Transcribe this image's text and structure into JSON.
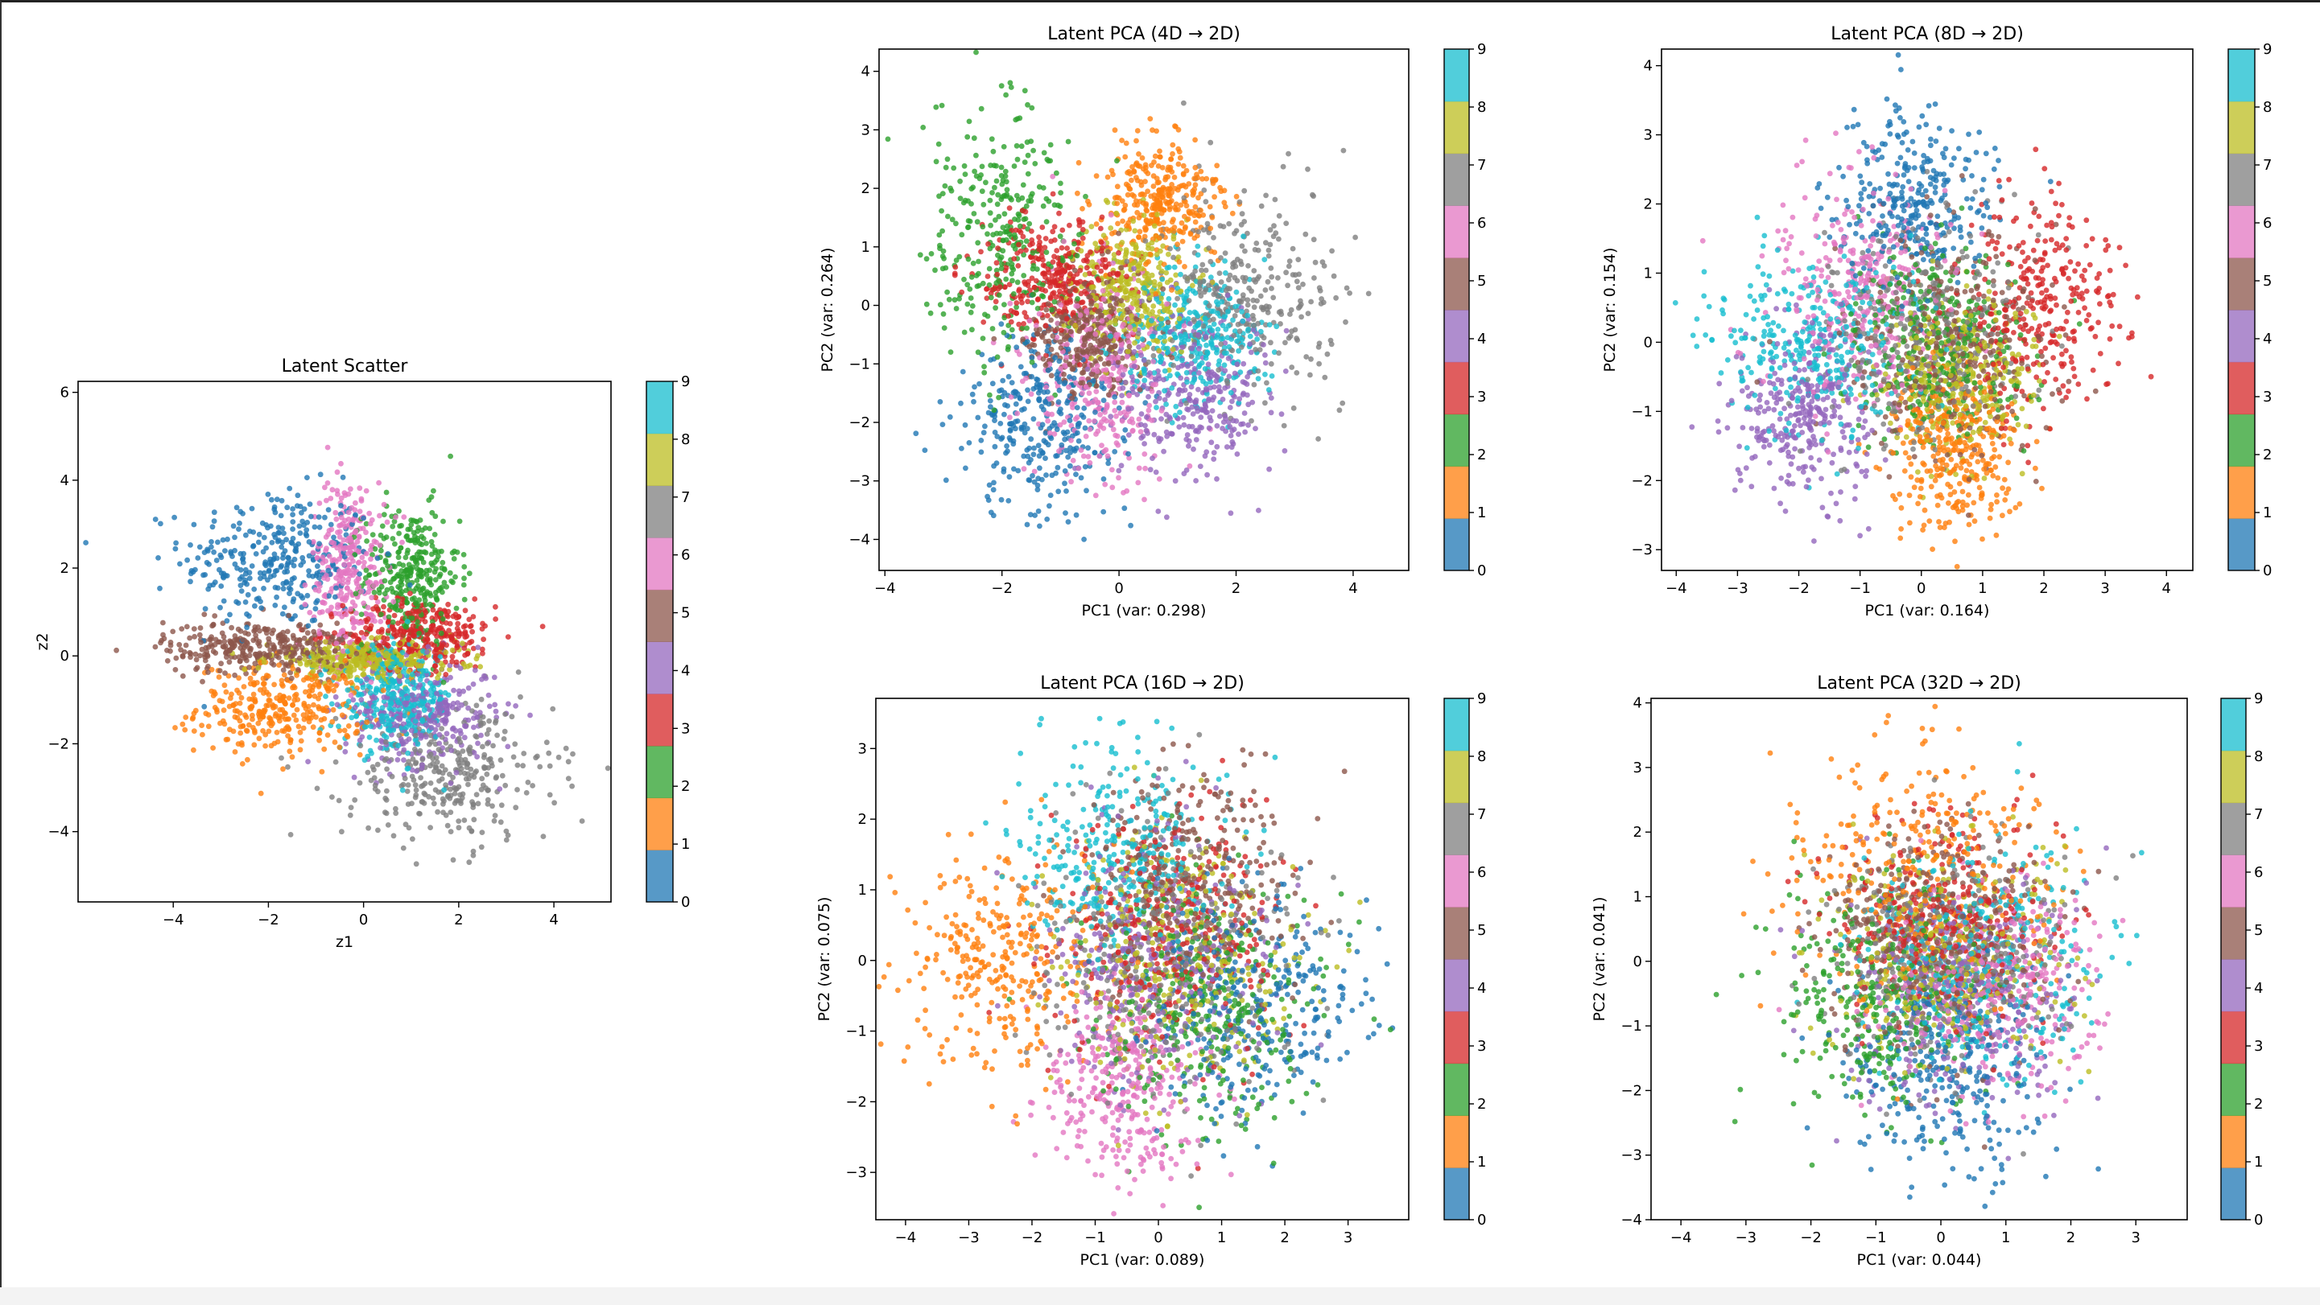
{
  "colors": [
    "#1f77b4",
    "#ff7f0e",
    "#2ca02c",
    "#d62728",
    "#9467bd",
    "#8c564b",
    "#e377c2",
    "#7f7f7f",
    "#bcbd22",
    "#17becf"
  ],
  "colorbar_ticks": [
    "0",
    "1",
    "2",
    "3",
    "4",
    "5",
    "6",
    "7",
    "8",
    "9"
  ],
  "chart_data": [
    {
      "type": "scatter",
      "title": "Latent Scatter",
      "xlabel": "z1",
      "ylabel": "z2",
      "xlim": [
        -6.0,
        5.2
      ],
      "ylim": [
        -5.6,
        6.25
      ],
      "xticks": [
        -4,
        -2,
        0,
        2,
        4
      ],
      "yticks": [
        -4,
        -2,
        0,
        2,
        4,
        6
      ],
      "colorbar": {
        "range": [
          0,
          9
        ],
        "label_field": "class"
      },
      "class_clusters": [
        {
          "class": 0,
          "center": [
            -1.8,
            2.2
          ],
          "spread": [
            1.0,
            0.8
          ]
        },
        {
          "class": 1,
          "center": [
            -1.7,
            -1.2
          ],
          "spread": [
            0.9,
            0.5
          ]
        },
        {
          "class": 2,
          "center": [
            1.0,
            1.8
          ],
          "spread": [
            0.5,
            0.8
          ]
        },
        {
          "class": 3,
          "center": [
            1.2,
            0.5
          ],
          "spread": [
            0.8,
            0.4
          ]
        },
        {
          "class": 4,
          "center": [
            1.2,
            -1.3
          ],
          "spread": [
            0.8,
            0.6
          ]
        },
        {
          "class": 5,
          "center": [
            -2.2,
            0.2
          ],
          "spread": [
            1.0,
            0.3
          ]
        },
        {
          "class": 6,
          "center": [
            -0.3,
            2.0
          ],
          "spread": [
            0.4,
            1.0
          ]
        },
        {
          "class": 7,
          "center": [
            1.8,
            -2.7
          ],
          "spread": [
            1.1,
            0.8
          ]
        },
        {
          "class": 8,
          "center": [
            0.0,
            -0.1
          ],
          "spread": [
            1.0,
            0.2
          ]
        },
        {
          "class": 9,
          "center": [
            0.7,
            -1.0
          ],
          "spread": [
            0.6,
            0.6
          ]
        }
      ]
    },
    {
      "type": "scatter",
      "title": "Latent PCA (4D → 2D)",
      "xlabel": "PC1 (var: 0.298)",
      "ylabel": "PC2 (var: 0.264)",
      "xlim": [
        -4.1,
        4.95
      ],
      "ylim": [
        -4.53,
        4.38
      ],
      "xticks": [
        -4,
        -2,
        0,
        2,
        4
      ],
      "yticks": [
        -4,
        -3,
        -2,
        -1,
        0,
        1,
        2,
        3,
        4
      ],
      "colorbar": {
        "range": [
          0,
          9
        ],
        "label_field": "class"
      },
      "class_clusters": [
        {
          "class": 0,
          "center": [
            -1.3,
            -2.0
          ],
          "spread": [
            0.7,
            0.8
          ]
        },
        {
          "class": 1,
          "center": [
            0.7,
            1.8
          ],
          "spread": [
            0.5,
            0.5
          ]
        },
        {
          "class": 2,
          "center": [
            -2.0,
            1.3
          ],
          "spread": [
            0.7,
            1.1
          ]
        },
        {
          "class": 3,
          "center": [
            -1.2,
            0.5
          ],
          "spread": [
            0.6,
            0.5
          ]
        },
        {
          "class": 4,
          "center": [
            1.2,
            -1.5
          ],
          "spread": [
            0.7,
            0.7
          ]
        },
        {
          "class": 5,
          "center": [
            -0.5,
            -0.5
          ],
          "spread": [
            0.5,
            0.5
          ]
        },
        {
          "class": 6,
          "center": [
            -0.3,
            -1.2
          ],
          "spread": [
            0.6,
            0.9
          ]
        },
        {
          "class": 7,
          "center": [
            2.2,
            0.3
          ],
          "spread": [
            0.8,
            0.9
          ]
        },
        {
          "class": 8,
          "center": [
            0.2,
            0.3
          ],
          "spread": [
            0.5,
            0.6
          ]
        },
        {
          "class": 9,
          "center": [
            1.3,
            -0.5
          ],
          "spread": [
            0.6,
            0.6
          ]
        }
      ]
    },
    {
      "type": "scatter",
      "title": "Latent PCA (8D → 2D)",
      "xlabel": "PC1 (var: 0.164)",
      "ylabel": "PC2 (var: 0.154)",
      "xlim": [
        -4.24,
        4.43
      ],
      "ylim": [
        -3.3,
        4.24
      ],
      "xticks": [
        -4,
        -3,
        -2,
        -1,
        0,
        1,
        2,
        3,
        4
      ],
      "yticks": [
        -3,
        -2,
        -1,
        0,
        1,
        2,
        3,
        4
      ],
      "colorbar": {
        "range": [
          0,
          9
        ],
        "label_field": "class"
      },
      "class_clusters": [
        {
          "class": 0,
          "center": [
            -0.2,
            2.0
          ],
          "spread": [
            0.6,
            0.7
          ]
        },
        {
          "class": 1,
          "center": [
            0.5,
            -1.5
          ],
          "spread": [
            0.5,
            0.6
          ]
        },
        {
          "class": 2,
          "center": [
            0.3,
            0.0
          ],
          "spread": [
            0.7,
            0.7
          ]
        },
        {
          "class": 3,
          "center": [
            1.9,
            0.5
          ],
          "spread": [
            0.7,
            0.8
          ]
        },
        {
          "class": 4,
          "center": [
            -1.9,
            -1.0
          ],
          "spread": [
            0.6,
            0.6
          ]
        },
        {
          "class": 5,
          "center": [
            0.5,
            0.0
          ],
          "spread": [
            0.8,
            0.8
          ]
        },
        {
          "class": 6,
          "center": [
            -1.0,
            0.8
          ],
          "spread": [
            0.7,
            0.8
          ]
        },
        {
          "class": 7,
          "center": [
            0.0,
            0.2
          ],
          "spread": [
            0.8,
            0.8
          ]
        },
        {
          "class": 8,
          "center": [
            0.6,
            -0.5
          ],
          "spread": [
            0.6,
            0.6
          ]
        },
        {
          "class": 9,
          "center": [
            -1.8,
            0.0
          ],
          "spread": [
            0.8,
            0.6
          ]
        }
      ]
    },
    {
      "type": "scatter",
      "title": "Latent PCA (16D → 2D)",
      "xlabel": "PC1 (var: 0.089)",
      "ylabel": "PC2 (var: 0.075)",
      "xlim": [
        -4.47,
        3.96
      ],
      "ylim": [
        -3.67,
        3.71
      ],
      "xticks": [
        -4,
        -3,
        -2,
        -1,
        0,
        1,
        2,
        3
      ],
      "yticks": [
        -3,
        -2,
        -1,
        0,
        1,
        2,
        3
      ],
      "colorbar": {
        "range": [
          0,
          9
        ],
        "label_field": "class"
      },
      "class_clusters": [
        {
          "class": 0,
          "center": [
            1.5,
            -0.5
          ],
          "spread": [
            0.9,
            0.8
          ]
        },
        {
          "class": 1,
          "center": [
            -2.5,
            0.0
          ],
          "spread": [
            0.8,
            0.8
          ]
        },
        {
          "class": 2,
          "center": [
            0.8,
            -0.7
          ],
          "spread": [
            0.9,
            0.9
          ]
        },
        {
          "class": 3,
          "center": [
            0.2,
            0.5
          ],
          "spread": [
            0.9,
            0.9
          ]
        },
        {
          "class": 4,
          "center": [
            0.0,
            0.0
          ],
          "spread": [
            0.9,
            0.9
          ]
        },
        {
          "class": 5,
          "center": [
            0.5,
            1.2
          ],
          "spread": [
            0.9,
            0.8
          ]
        },
        {
          "class": 6,
          "center": [
            -0.6,
            -1.8
          ],
          "spread": [
            0.6,
            0.7
          ]
        },
        {
          "class": 7,
          "center": [
            0.0,
            0.0
          ],
          "spread": [
            1.0,
            1.0
          ]
        },
        {
          "class": 8,
          "center": [
            0.3,
            0.0
          ],
          "spread": [
            0.9,
            0.9
          ]
        },
        {
          "class": 9,
          "center": [
            -0.6,
            1.5
          ],
          "spread": [
            0.8,
            0.8
          ]
        }
      ]
    },
    {
      "type": "scatter",
      "title": "Latent PCA (32D → 2D)",
      "xlabel": "PC1 (var: 0.044)",
      "ylabel": "PC2 (var: 0.041)",
      "xlim": [
        -4.46,
        3.79
      ],
      "ylim": [
        -4.0,
        4.07
      ],
      "xticks": [
        -4,
        -3,
        -2,
        -1,
        0,
        1,
        2,
        3
      ],
      "yticks": [
        -4,
        -3,
        -2,
        -1,
        0,
        1,
        2,
        3,
        4
      ],
      "colorbar": {
        "range": [
          0,
          9
        ],
        "label_field": "class"
      },
      "class_clusters": [
        {
          "class": 0,
          "center": [
            0.1,
            -1.5
          ],
          "spread": [
            0.8,
            0.9
          ]
        },
        {
          "class": 1,
          "center": [
            -0.4,
            1.3
          ],
          "spread": [
            1.0,
            1.1
          ]
        },
        {
          "class": 2,
          "center": [
            -1.0,
            -0.5
          ],
          "spread": [
            0.8,
            0.9
          ]
        },
        {
          "class": 3,
          "center": [
            0.0,
            0.6
          ],
          "spread": [
            0.8,
            0.8
          ]
        },
        {
          "class": 4,
          "center": [
            0.3,
            -0.5
          ],
          "spread": [
            0.9,
            0.9
          ]
        },
        {
          "class": 5,
          "center": [
            0.0,
            0.3
          ],
          "spread": [
            0.9,
            0.9
          ]
        },
        {
          "class": 6,
          "center": [
            0.8,
            -0.5
          ],
          "spread": [
            0.8,
            0.8
          ]
        },
        {
          "class": 7,
          "center": [
            0.0,
            0.0
          ],
          "spread": [
            0.9,
            0.9
          ]
        },
        {
          "class": 8,
          "center": [
            0.0,
            0.0
          ],
          "spread": [
            0.9,
            0.9
          ]
        },
        {
          "class": 9,
          "center": [
            0.7,
            0.0
          ],
          "spread": [
            0.9,
            0.9
          ]
        }
      ]
    }
  ]
}
